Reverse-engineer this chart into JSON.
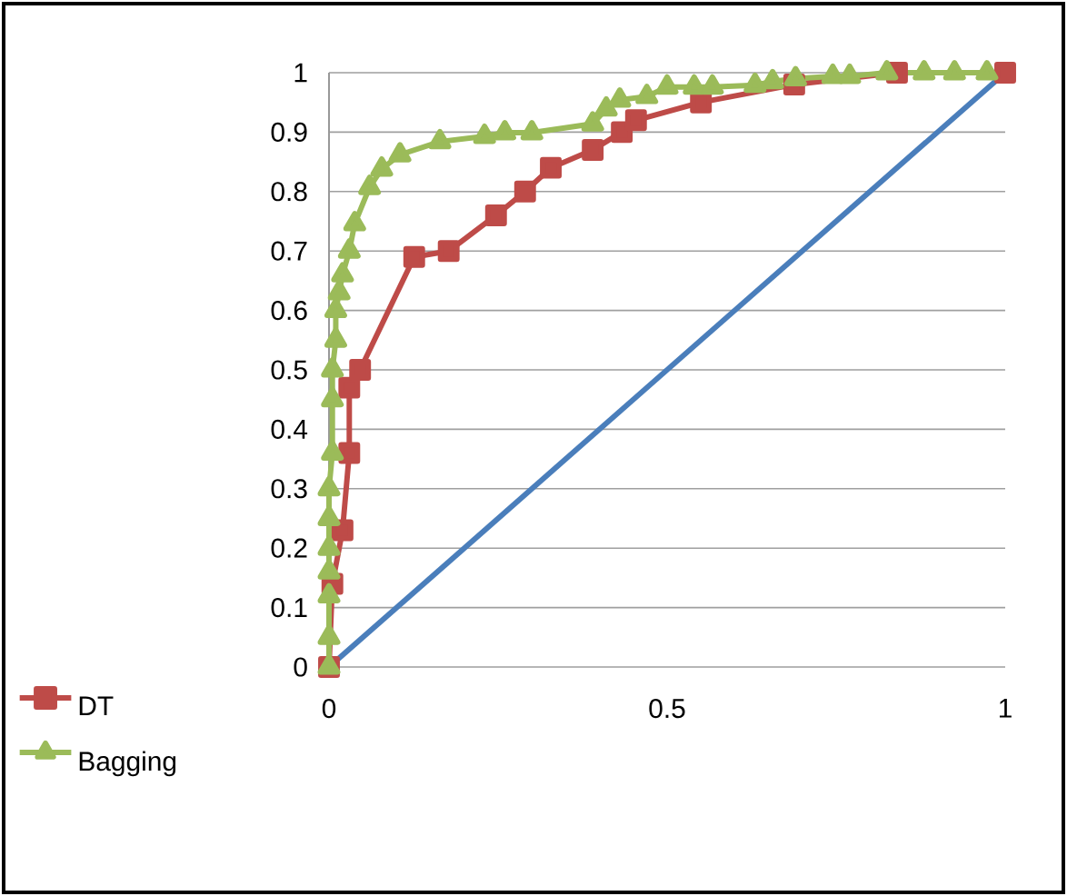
{
  "chart_data": {
    "type": "line",
    "xlim": [
      0,
      1
    ],
    "ylim": [
      0,
      1
    ],
    "xticks": [
      0,
      0.5,
      1
    ],
    "yticks": [
      0,
      0.1,
      0.2,
      0.3,
      0.4,
      0.5,
      0.6,
      0.7,
      0.8,
      0.9,
      1
    ],
    "grid": "y",
    "legend": "bottom left",
    "series": [
      {
        "color": "#4a7ebb",
        "marker": "none",
        "x": [
          0,
          1
        ],
        "values": [
          0,
          1
        ]
      },
      {
        "name": "DT",
        "color": "#be4b48",
        "marker": "square",
        "x": [
          0,
          0.005,
          0.02,
          0.03,
          0.03,
          0.046,
          0.126,
          0.177,
          0.247,
          0.29,
          0.328,
          0.39,
          0.433,
          0.454,
          0.55,
          0.688,
          0.84,
          1.0
        ],
        "values": [
          0,
          0.14,
          0.23,
          0.36,
          0.47,
          0.5,
          0.69,
          0.7,
          0.76,
          0.8,
          0.84,
          0.87,
          0.9,
          0.92,
          0.95,
          0.98,
          1.0,
          1.0
        ]
      },
      {
        "name": "Bagging",
        "color": "#9bbb59",
        "marker": "triangle",
        "x": [
          0,
          0,
          0,
          0,
          0,
          0,
          0,
          0.005,
          0.005,
          0.005,
          0.01,
          0.01,
          0.015,
          0.02,
          0.03,
          0.038,
          0.06,
          0.078,
          0.105,
          0.164,
          0.23,
          0.26,
          0.3,
          0.39,
          0.41,
          0.43,
          0.47,
          0.5,
          0.54,
          0.567,
          0.63,
          0.656,
          0.69,
          0.745,
          0.77,
          0.825,
          0.88,
          0.925,
          0.973
        ],
        "values": [
          0,
          0.05,
          0.12,
          0.16,
          0.2,
          0.25,
          0.3,
          0.36,
          0.45,
          0.5,
          0.55,
          0.6,
          0.63,
          0.66,
          0.7,
          0.746,
          0.807,
          0.838,
          0.862,
          0.884,
          0.893,
          0.899,
          0.899,
          0.914,
          0.939,
          0.954,
          0.96,
          0.976,
          0.976,
          0.976,
          0.979,
          0.985,
          0.99,
          0.994,
          0.994,
          1.0,
          1.0,
          1.0,
          1.0
        ]
      }
    ]
  }
}
